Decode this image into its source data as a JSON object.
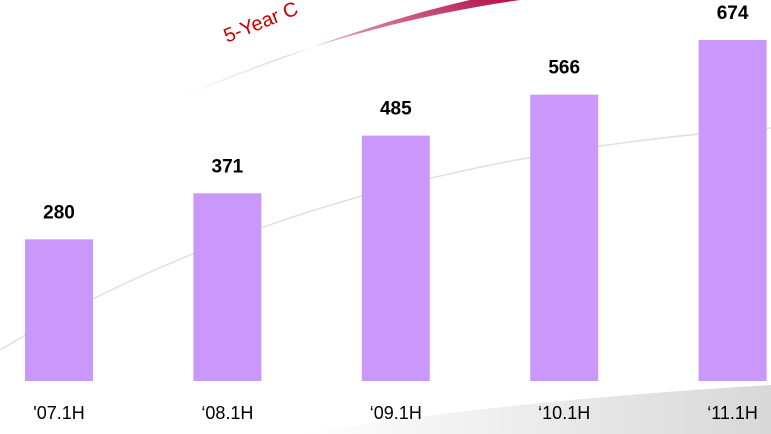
{
  "chart_data": {
    "type": "bar",
    "annotation": "5-Year C",
    "categories": [
      "'07.1H",
      "‘08.1H",
      "‘09.1H",
      "‘10.1H",
      "‘11.1H"
    ],
    "values": [
      280,
      371,
      485,
      566,
      674
    ],
    "color": "#c998fa"
  }
}
